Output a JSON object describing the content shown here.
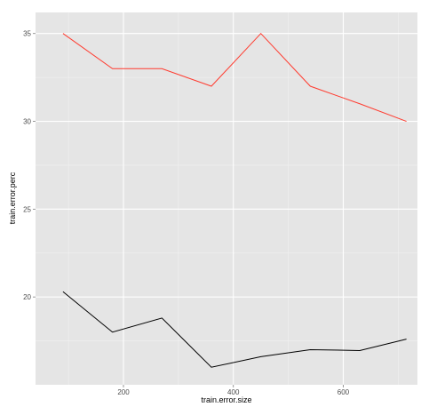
{
  "chart_data": {
    "type": "line",
    "xlabel": "train.error.size",
    "ylabel": "train.error.perc",
    "xlim": [
      40,
      735
    ],
    "ylim": [
      15,
      36.2
    ],
    "x_ticks": [
      200,
      400,
      600
    ],
    "y_ticks": [
      20,
      25,
      30,
      35
    ],
    "grid": true,
    "legend": "none",
    "series": [
      {
        "color": "#ff3b2f",
        "x": [
          90,
          180,
          270,
          360,
          450,
          540,
          630,
          715
        ],
        "y": [
          35,
          33,
          33,
          32,
          35,
          32,
          31,
          30
        ]
      },
      {
        "color": "#000000",
        "x": [
          90,
          180,
          270,
          360,
          450,
          540,
          630,
          715
        ],
        "y": [
          20.3,
          18,
          18.8,
          16,
          16.6,
          17,
          16.95,
          17.6
        ]
      }
    ]
  }
}
